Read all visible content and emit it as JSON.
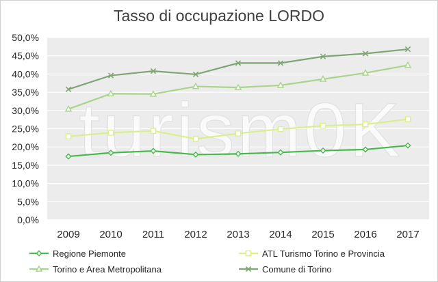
{
  "watermark": "turism0K",
  "chart_data": {
    "type": "line",
    "title": "Tasso di occupazione LORDO",
    "xlabel": "",
    "ylabel": "",
    "categories": [
      "2009",
      "2010",
      "2011",
      "2012",
      "2013",
      "2014",
      "2015",
      "2016",
      "2017"
    ],
    "ylim": [
      0,
      50
    ],
    "ytick_labels": [
      "0,0%",
      "5,0%",
      "10,0%",
      "15,0%",
      "20,0%",
      "25,0%",
      "30,0%",
      "35,0%",
      "40,0%",
      "45,0%",
      "50,0%"
    ],
    "grid": true,
    "legend_position": "bottom",
    "series": [
      {
        "name": "Regione Piemonte",
        "color": "#45b94a",
        "marker": "diamond",
        "values": [
          17.4,
          18.4,
          18.9,
          17.9,
          18.1,
          18.5,
          19.0,
          19.3,
          20.4
        ]
      },
      {
        "name": "ATL Turismo Torino e Provincia",
        "color": "#d9f08a",
        "marker": "square",
        "values": [
          22.9,
          23.9,
          24.4,
          22.2,
          23.7,
          24.9,
          25.8,
          26.2,
          27.6
        ]
      },
      {
        "name": "Torino e Area Metropolitana",
        "color": "#a9d48b",
        "marker": "triangle",
        "values": [
          30.4,
          34.6,
          34.5,
          36.6,
          36.3,
          36.9,
          38.6,
          40.3,
          42.4
        ]
      },
      {
        "name": "Comune di Torino",
        "color": "#7ea672",
        "marker": "x",
        "values": [
          35.8,
          39.6,
          40.8,
          39.9,
          43.0,
          43.0,
          44.8,
          45.6,
          46.8
        ]
      }
    ]
  }
}
